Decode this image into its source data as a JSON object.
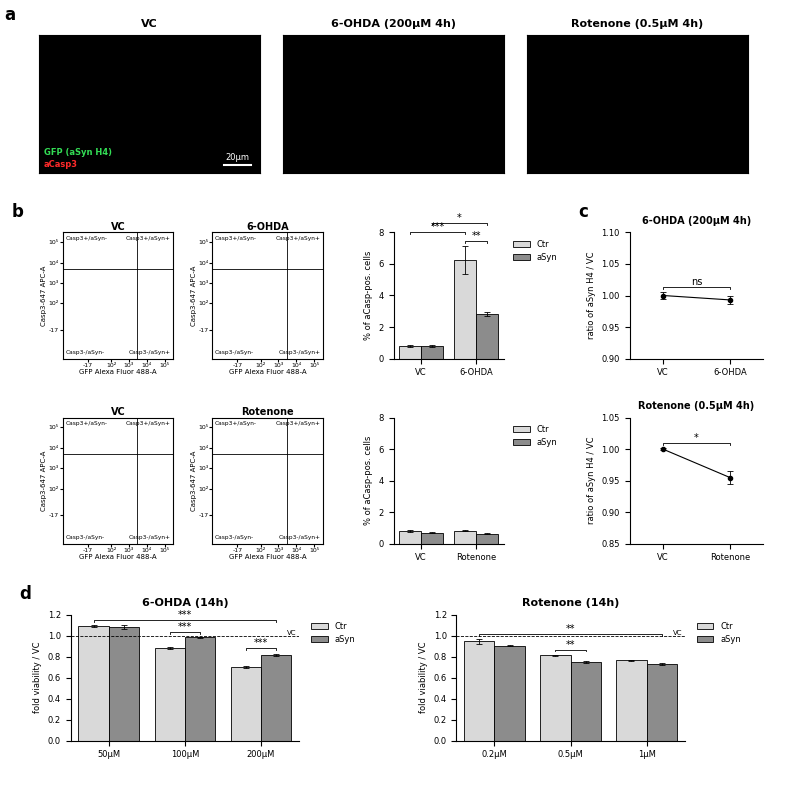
{
  "chart_data": [
    {
      "type": "image",
      "panel_label": "a",
      "title": "VC",
      "annotations": [
        {
          "text": "GFP (aSyn H4)",
          "color": "#33dd55"
        },
        {
          "text": "aCasp3",
          "color": "#ff2a2a"
        }
      ],
      "scale_bar_label": "20µm"
    },
    {
      "type": "image",
      "title": "6-OHDA (200µM 4h)"
    },
    {
      "type": "image",
      "title": "Rotenone (0.5µM 4h)"
    },
    {
      "type": "scatter",
      "panel_label": "b",
      "title": "VC",
      "x_label": "GFP Alexa Fluor 488-A",
      "y_label": "Casp3-647 APC-A",
      "log": true,
      "xlim": [
        -300,
        300000
      ],
      "ylim": [
        -300,
        300000
      ],
      "xticks": [
        {
          "value": -17,
          "label": "-17"
        },
        {
          "value": 100,
          "label": "10²"
        },
        {
          "value": 1000,
          "label": "10³"
        },
        {
          "value": 10000,
          "label": "10⁴"
        },
        {
          "value": 100000,
          "label": "10⁵"
        }
      ],
      "yticks": [
        {
          "value": -17,
          "label": "-17"
        },
        {
          "value": 100,
          "label": "10²"
        },
        {
          "value": 1000,
          "label": "10³"
        },
        {
          "value": 10000,
          "label": "10⁴"
        },
        {
          "value": 100000,
          "label": "10⁵"
        }
      ],
      "gate": [
        3000,
        5000
      ],
      "quadrant_labels": [
        "Casp3+/aSyn-",
        "Casp3+/aSyn+",
        "Casp3-/aSyn-",
        "Casp3-/aSyn+"
      ]
    },
    {
      "type": "scatter",
      "title": "6-OHDA",
      "x_label": "GFP Alexa Fluor 488-A",
      "y_label": "Casp3-647 APC-A",
      "log": true,
      "xlim": [
        -300,
        300000
      ],
      "ylim": [
        -300,
        300000
      ],
      "xticks": [
        {
          "value": -17,
          "label": "-17"
        },
        {
          "value": 100,
          "label": "10²"
        },
        {
          "value": 1000,
          "label": "10³"
        },
        {
          "value": 10000,
          "label": "10⁴"
        },
        {
          "value": 100000,
          "label": "10⁵"
        }
      ],
      "yticks": [
        {
          "value": -17,
          "label": "-17"
        },
        {
          "value": 100,
          "label": "10²"
        },
        {
          "value": 1000,
          "label": "10³"
        },
        {
          "value": 10000,
          "label": "10⁴"
        },
        {
          "value": 100000,
          "label": "10⁵"
        }
      ],
      "gate": [
        3000,
        5000
      ],
      "quadrant_labels": [
        "Casp3+/aSyn-",
        "Casp3+/aSyn+",
        "Casp3-/aSyn-",
        "Casp3-/aSyn+"
      ]
    },
    {
      "type": "bar",
      "y_label": "% of aCasp-pos. cells",
      "categories": [
        "VC",
        "6-OHDA"
      ],
      "series": [
        {
          "name": "Ctr",
          "color": "#d9d9d9",
          "values": [
            0.8,
            6.25
          ],
          "errors": [
            0.08,
            0.9
          ]
        },
        {
          "name": "aSyn",
          "color": "#8c8c8c",
          "values": [
            0.8,
            2.85
          ],
          "errors": [
            0.06,
            0.12
          ]
        }
      ],
      "ylim": [
        0,
        8
      ],
      "yticks": [
        0,
        2,
        4,
        6,
        8
      ],
      "legend": "upper left",
      "significance": [
        {
          "from": [
            1,
            0
          ],
          "to": [
            1,
            1
          ],
          "label": "**"
        },
        {
          "from": [
            0,
            0
          ],
          "to": [
            1,
            0
          ],
          "label": "***"
        },
        {
          "from": [
            0,
            1
          ],
          "to": [
            1,
            1
          ],
          "label": "*"
        }
      ]
    },
    {
      "type": "line",
      "panel_label": "c",
      "title": "6-OHDA (200µM 4h)",
      "y_label": "ratio of aSyn H4 / VC",
      "categories": [
        "VC",
        "6-OHDA"
      ],
      "values": [
        1.0,
        0.993
      ],
      "errors": [
        0.005,
        0.007
      ],
      "color": "#000000",
      "marker": "o",
      "ylim": [
        0.9,
        1.1
      ],
      "yticks": [
        {
          "value": 0.9,
          "label": "0.90"
        },
        {
          "value": 0.95,
          "label": "0.95"
        },
        {
          "value": 1.0,
          "label": "1.00"
        },
        {
          "value": 1.05,
          "label": "1.05"
        },
        {
          "value": 1.1,
          "label": "1.10"
        }
      ],
      "significance": [
        {
          "from": 0,
          "to": 1,
          "label": "ns"
        }
      ]
    },
    {
      "type": "scatter",
      "title": "VC",
      "x_label": "GFP Alexa Fluor 488-A",
      "y_label": "Casp3-647 APC-A",
      "log": true,
      "xlim": [
        -300,
        300000
      ],
      "ylim": [
        -300,
        300000
      ],
      "xticks": [
        {
          "value": -17,
          "label": "-17"
        },
        {
          "value": 100,
          "label": "10²"
        },
        {
          "value": 1000,
          "label": "10³"
        },
        {
          "value": 10000,
          "label": "10⁴"
        },
        {
          "value": 100000,
          "label": "10⁵"
        }
      ],
      "yticks": [
        {
          "value": -17,
          "label": "-17"
        },
        {
          "value": 100,
          "label": "10²"
        },
        {
          "value": 1000,
          "label": "10³"
        },
        {
          "value": 10000,
          "label": "10⁴"
        },
        {
          "value": 100000,
          "label": "10⁵"
        }
      ],
      "gate": [
        3000,
        5000
      ],
      "quadrant_labels": [
        "Casp3+/aSyn-",
        "Casp3+/aSyn+",
        "Casp3-/aSyn-",
        "Casp3-/aSyn+"
      ]
    },
    {
      "type": "scatter",
      "title": "Rotenone",
      "x_label": "GFP Alexa Fluor 488-A",
      "y_label": "Casp3-647 APC-A",
      "log": true,
      "xlim": [
        -300,
        300000
      ],
      "ylim": [
        -300,
        300000
      ],
      "xticks": [
        {
          "value": -17,
          "label": "-17"
        },
        {
          "value": 100,
          "label": "10²"
        },
        {
          "value": 1000,
          "label": "10³"
        },
        {
          "value": 10000,
          "label": "10⁴"
        },
        {
          "value": 100000,
          "label": "10⁵"
        }
      ],
      "yticks": [
        {
          "value": -17,
          "label": "-17"
        },
        {
          "value": 100,
          "label": "10²"
        },
        {
          "value": 1000,
          "label": "10³"
        },
        {
          "value": 10000,
          "label": "10⁴"
        },
        {
          "value": 100000,
          "label": "10⁵"
        }
      ],
      "gate": [
        3000,
        5000
      ],
      "quadrant_labels": [
        "Casp3+/aSyn-",
        "Casp3+/aSyn+",
        "Casp3-/aSyn-",
        "Casp3-/aSyn+"
      ]
    },
    {
      "type": "bar",
      "y_label": "% of aCasp-pos. cells",
      "categories": [
        "VC",
        "Rotenone"
      ],
      "series": [
        {
          "name": "Ctr",
          "color": "#d9d9d9",
          "values": [
            0.82,
            0.82
          ],
          "errors": [
            0.06,
            0.03
          ]
        },
        {
          "name": "aSyn",
          "color": "#8c8c8c",
          "values": [
            0.7,
            0.62
          ],
          "errors": [
            0.05,
            0.03
          ]
        }
      ],
      "ylim": [
        0,
        8
      ],
      "yticks": [
        0,
        2,
        4,
        6,
        8
      ],
      "legend": "upper left"
    },
    {
      "type": "line",
      "title": "Rotenone (0.5µM 4h)",
      "y_label": "ratio of aSyn H4 / VC",
      "categories": [
        "VC",
        "Rotenone"
      ],
      "values": [
        1.0,
        0.955
      ],
      "errors": [
        0.002,
        0.01
      ],
      "color": "#000000",
      "marker": "o",
      "ylim": [
        0.85,
        1.05
      ],
      "yticks": [
        {
          "value": 0.85,
          "label": "0.85"
        },
        {
          "value": 0.9,
          "label": "0.90"
        },
        {
          "value": 0.95,
          "label": "0.95"
        },
        {
          "value": 1.0,
          "label": "1.00"
        },
        {
          "value": 1.05,
          "label": "1.05"
        }
      ],
      "significance": [
        {
          "from": 0,
          "to": 1,
          "label": "*"
        }
      ]
    },
    {
      "type": "bar",
      "panel_label": "d",
      "title": "6-OHDA (14h)",
      "y_label": "fold viability / VC",
      "categories": [
        "50µM",
        "100µM",
        "200µM"
      ],
      "series": [
        {
          "name": "Ctr",
          "color": "#d9d9d9",
          "values": [
            1.09,
            0.88,
            0.7
          ],
          "errors": [
            0.01,
            0.01,
            0.01
          ]
        },
        {
          "name": "aSyn",
          "color": "#8c8c8c",
          "values": [
            1.08,
            0.985,
            0.82
          ],
          "errors": [
            0.02,
            0.005,
            0.01
          ]
        }
      ],
      "ylim": [
        0,
        1.2
      ],
      "yticks": [
        {
          "value": 0,
          "label": "0.0"
        },
        {
          "value": 0.2,
          "label": "0.2"
        },
        {
          "value": 0.4,
          "label": "0.4"
        },
        {
          "value": 0.6,
          "label": "0.6"
        },
        {
          "value": 0.8,
          "label": "0.8"
        },
        {
          "value": 1.0,
          "label": "1.0"
        },
        {
          "value": 1.2,
          "label": "1.2"
        }
      ],
      "reference_line": {
        "value": 1.0,
        "label": "VC"
      },
      "legend": "upper left",
      "significance": [
        {
          "from": [
            1,
            0
          ],
          "to": [
            1,
            1
          ],
          "label": "***"
        },
        {
          "from": [
            2,
            0
          ],
          "to": [
            2,
            1
          ],
          "label": "***"
        },
        {
          "from": [
            0,
            0
          ],
          "to": [
            2,
            1
          ],
          "label": "***"
        }
      ]
    },
    {
      "type": "bar",
      "title": "Rotenone (14h)",
      "y_label": "fold viability / VC",
      "categories": [
        "0.2µM",
        "0.5µM",
        "1µM"
      ],
      "series": [
        {
          "name": "Ctr",
          "color": "#d9d9d9",
          "values": [
            0.945,
            0.815,
            0.765
          ],
          "errors": [
            0.02,
            0.005,
            0.005
          ]
        },
        {
          "name": "aSyn",
          "color": "#8c8c8c",
          "values": [
            0.905,
            0.745,
            0.73
          ],
          "errors": [
            0.005,
            0.01,
            0.01
          ]
        }
      ],
      "ylim": [
        0,
        1.2
      ],
      "yticks": [
        {
          "value": 0,
          "label": "0.0"
        },
        {
          "value": 0.2,
          "label": "0.2"
        },
        {
          "value": 0.4,
          "label": "0.4"
        },
        {
          "value": 0.6,
          "label": "0.6"
        },
        {
          "value": 0.8,
          "label": "0.8"
        },
        {
          "value": 1.0,
          "label": "1.0"
        },
        {
          "value": 1.2,
          "label": "1.2"
        }
      ],
      "reference_line": {
        "value": 1.0,
        "label": "VC"
      },
      "legend": "upper left",
      "significance": [
        {
          "from": [
            1,
            0
          ],
          "to": [
            1,
            1
          ],
          "label": "**"
        },
        {
          "from": [
            0,
            0
          ],
          "to": [
            2,
            1
          ],
          "label": "**"
        }
      ]
    }
  ]
}
